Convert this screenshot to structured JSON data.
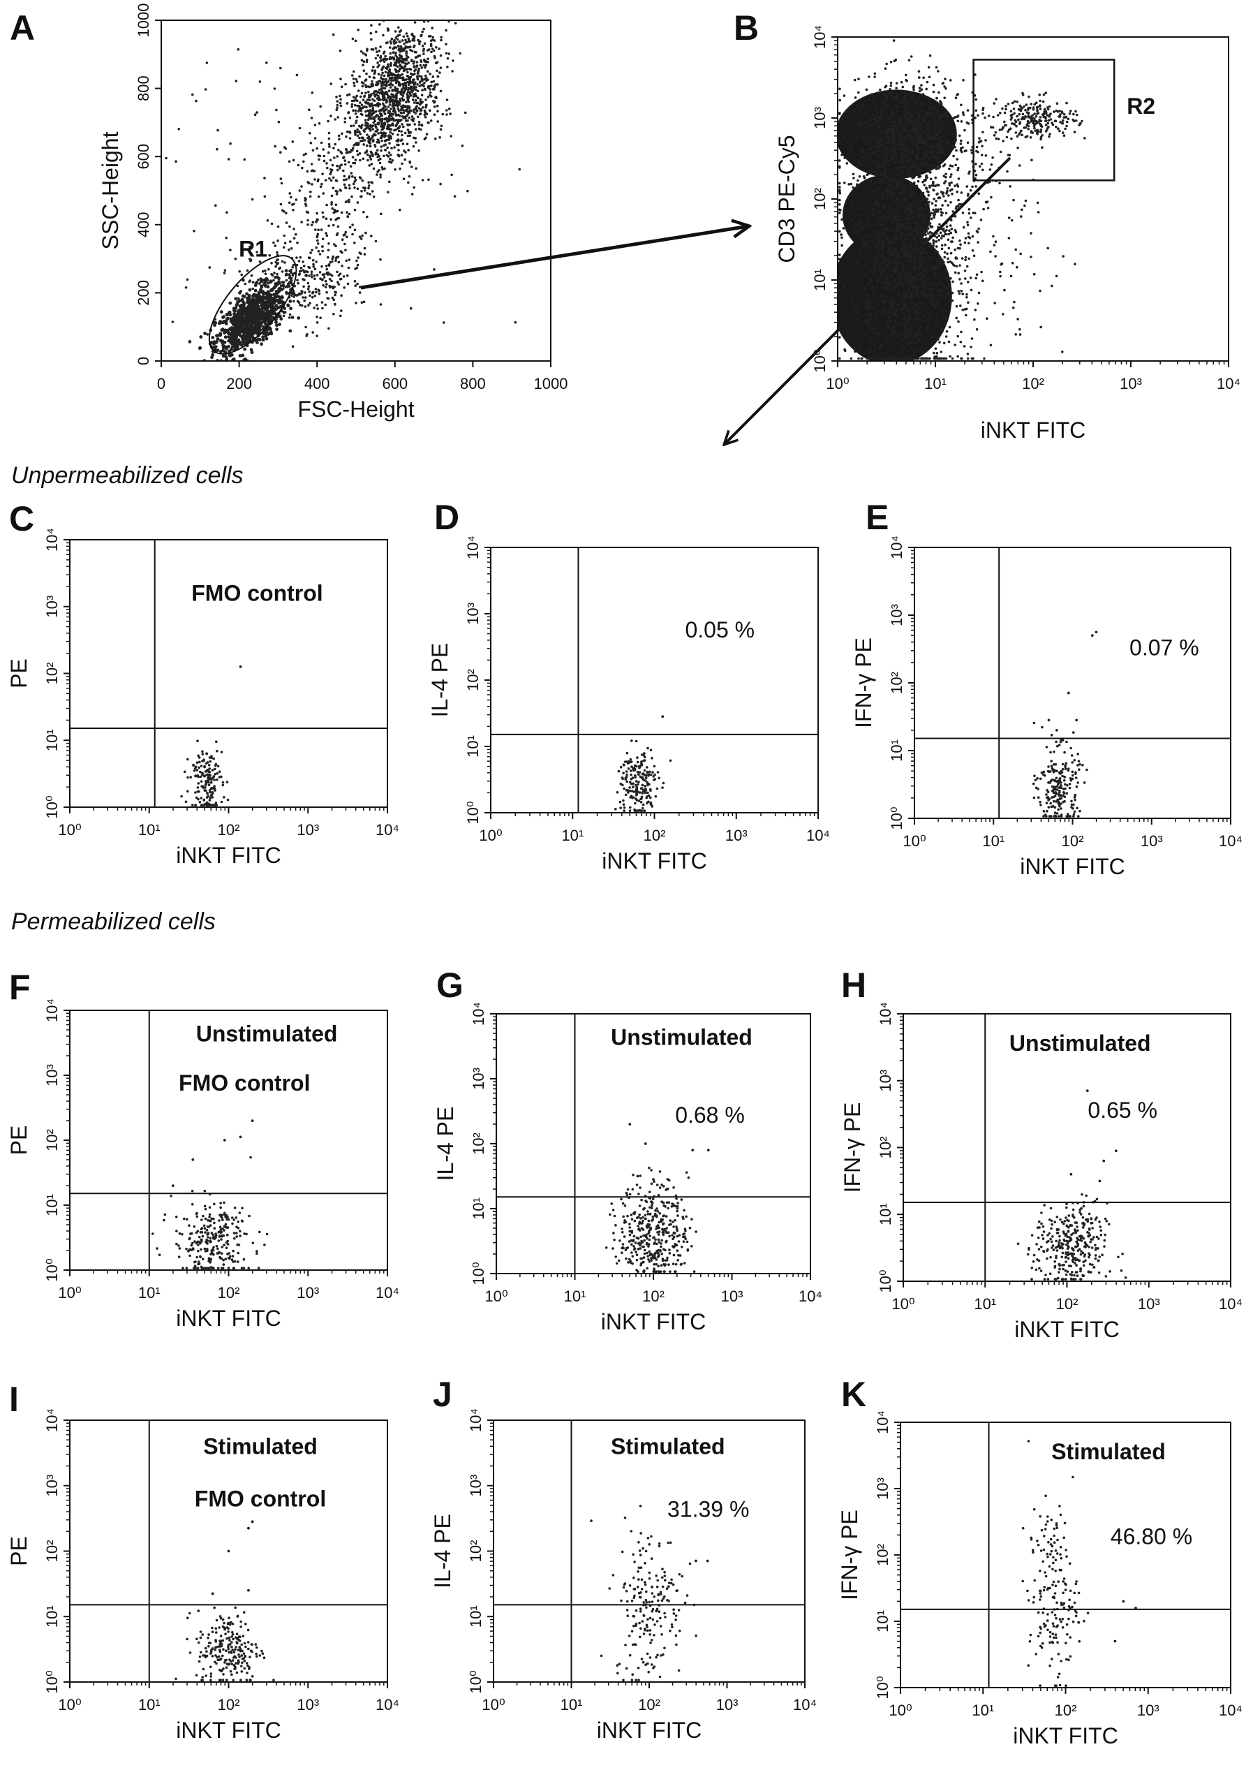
{
  "sections": {
    "unpermeabilized": "Unpermeabilized cells",
    "permeabilized": "Permeabilized cells"
  },
  "chart_data": [
    {
      "panel": "A",
      "type": "scatter",
      "x_scale": "linear",
      "y_scale": "linear",
      "xlim": [
        0,
        1000
      ],
      "ylim": [
        0,
        1000
      ],
      "xlabel": "FSC-Height",
      "ylabel": "SSC-Height",
      "xticks": [
        0,
        200,
        400,
        600,
        800,
        1000
      ],
      "xtick_labels": [
        "0",
        "200",
        "400",
        "600",
        "800",
        "1000"
      ],
      "yticks": [
        0,
        200,
        400,
        600,
        800,
        1000
      ],
      "ytick_labels": [
        "0",
        "200",
        "400",
        "600",
        "800",
        "1000"
      ],
      "gates": [
        {
          "type": "ellipse",
          "label": "R1",
          "cx": 235,
          "cy": 165,
          "rx": 155,
          "ry": 75,
          "angle_deg": 50
        }
      ],
      "clusters": [
        {
          "cx": 230,
          "cy": 120,
          "sx": 45,
          "sy": 40,
          "n": 900,
          "dense": true
        },
        {
          "cx": 590,
          "cy": 770,
          "sx": 55,
          "sy": 110,
          "n": 1300
        },
        {
          "cx": 420,
          "cy": 420,
          "sx": 60,
          "sy": 150,
          "n": 250
        },
        {
          "cx": 330,
          "cy": 230,
          "sx": 70,
          "sy": 50,
          "n": 250
        },
        {
          "cx": 400,
          "cy": 500,
          "sx": 220,
          "sy": 280,
          "n": 120
        }
      ],
      "annotations": []
    },
    {
      "panel": "B",
      "type": "scatter",
      "x_scale": "log",
      "y_scale": "log",
      "xlim": [
        0,
        4
      ],
      "ylim": [
        0,
        4
      ],
      "xlabel": "iNKT  FITC",
      "ylabel": "CD3  PE-Cy5",
      "xticks": [
        0,
        1,
        2,
        3,
        4
      ],
      "xtick_labels": [
        "10⁰",
        "10¹",
        "10²",
        "10³",
        "10⁴"
      ],
      "yticks": [
        0,
        1,
        2,
        3,
        4
      ],
      "ytick_labels": [
        "10⁰",
        "10¹",
        "10²",
        "10³",
        "10⁴"
      ],
      "gates": [
        {
          "type": "rect",
          "label": "R2",
          "x": [
            1.39,
            2.83
          ],
          "y": [
            2.23,
            3.72
          ]
        }
      ],
      "dense_regions": [
        {
          "cx": 0.6,
          "cy": 2.8,
          "rx": 0.62,
          "ry": 0.55
        },
        {
          "cx": 0.55,
          "cy": 0.8,
          "rx": 0.62,
          "ry": 0.85
        },
        {
          "cx": 0.5,
          "cy": 1.8,
          "rx": 0.45,
          "ry": 0.5
        }
      ],
      "clusters": [
        {
          "cx": 0.7,
          "cy": 2.8,
          "sx": 0.3,
          "sy": 0.35,
          "n": 700
        },
        {
          "cx": 0.7,
          "cy": 0.8,
          "sx": 0.3,
          "sy": 0.6,
          "n": 800
        },
        {
          "cx": 0.8,
          "cy": 1.8,
          "sx": 0.35,
          "sy": 0.45,
          "n": 600
        },
        {
          "cx": 2.05,
          "cy": 3.0,
          "sx": 0.2,
          "sy": 0.12,
          "n": 220
        },
        {
          "cx": 1.6,
          "cy": 2.7,
          "sx": 0.2,
          "sy": 0.25,
          "n": 60
        },
        {
          "cx": 1.6,
          "cy": 1.2,
          "sx": 0.4,
          "sy": 0.7,
          "n": 80
        }
      ],
      "annotations": []
    },
    {
      "panel": "C",
      "type": "scatter",
      "x_scale": "log",
      "y_scale": "log",
      "xlim": [
        0,
        4
      ],
      "ylim": [
        0,
        4
      ],
      "xlabel": "iNKT  FITC",
      "ylabel": "PE",
      "xtick_labels": [
        "10⁰",
        "10¹",
        "10²",
        "10³",
        "10⁴"
      ],
      "ytick_labels": [
        "10⁰",
        "10¹",
        "10²",
        "10³",
        "10⁴"
      ],
      "quadrant_gate": {
        "x": 1.07,
        "y": 1.18
      },
      "clusters": [
        {
          "cx": 1.72,
          "cy": 0.4,
          "sx": 0.1,
          "sy": 0.25,
          "n": 160
        }
      ],
      "outliers": [
        [
          2.15,
          2.1
        ]
      ],
      "annotations": [
        {
          "text": "FMO control",
          "bold": true
        }
      ]
    },
    {
      "panel": "D",
      "type": "scatter",
      "x_scale": "log",
      "y_scale": "log",
      "xlim": [
        0,
        4
      ],
      "ylim": [
        0,
        4
      ],
      "xlabel": "iNKT  FITC",
      "ylabel": "IL-4  PE",
      "xtick_labels": [
        "10⁰",
        "10¹",
        "10²",
        "10³",
        "10⁴"
      ],
      "ytick_labels": [
        "10⁰",
        "10¹",
        "10²",
        "10³",
        "10⁴"
      ],
      "quadrant_gate": {
        "x": 1.07,
        "y": 1.18
      },
      "clusters": [
        {
          "cx": 1.8,
          "cy": 0.45,
          "sx": 0.12,
          "sy": 0.28,
          "n": 190
        }
      ],
      "outliers": [
        [
          2.1,
          1.45
        ]
      ],
      "annotations": [
        {
          "text": "0.05 %",
          "bold": false
        }
      ]
    },
    {
      "panel": "E",
      "type": "scatter",
      "x_scale": "log",
      "y_scale": "log",
      "xlim": [
        0,
        4
      ],
      "ylim": [
        0,
        4
      ],
      "xlabel": "iNKT  FITC",
      "ylabel": "IFN-γ PE",
      "xtick_labels": [
        "10⁰",
        "10¹",
        "10²",
        "10³",
        "10⁴"
      ],
      "ytick_labels": [
        "10⁰",
        "10¹",
        "10²",
        "10³",
        "10⁴"
      ],
      "quadrant_gate": {
        "x": 1.07,
        "y": 1.18
      },
      "clusters": [
        {
          "cx": 1.82,
          "cy": 0.45,
          "sx": 0.13,
          "sy": 0.3,
          "n": 210
        }
      ],
      "outliers": [
        [
          2.3,
          2.75
        ],
        [
          2.25,
          2.7
        ],
        [
          1.95,
          1.85
        ],
        [
          1.7,
          1.45
        ],
        [
          2.05,
          1.45
        ],
        [
          1.8,
          1.3
        ]
      ],
      "annotations": [
        {
          "text": "0.07 %",
          "bold": false
        }
      ]
    },
    {
      "panel": "F",
      "type": "scatter",
      "x_scale": "log",
      "y_scale": "log",
      "xlim": [
        0,
        4
      ],
      "ylim": [
        0,
        4
      ],
      "xlabel": "iNKT  FITC",
      "ylabel": "PE",
      "xtick_labels": [
        "10⁰",
        "10¹",
        "10²",
        "10³",
        "10⁴"
      ],
      "ytick_labels": [
        "10⁰",
        "10¹",
        "10²",
        "10³",
        "10⁴"
      ],
      "quadrant_gate": {
        "x": 1.0,
        "y": 1.18
      },
      "clusters": [
        {
          "cx": 1.8,
          "cy": 0.45,
          "sx": 0.25,
          "sy": 0.3,
          "n": 260
        }
      ],
      "outliers": [
        [
          2.3,
          2.3
        ],
        [
          2.15,
          2.05
        ],
        [
          1.95,
          2.0
        ],
        [
          1.55,
          1.7
        ],
        [
          1.3,
          1.3
        ]
      ],
      "annotations": [
        {
          "text": "Unstimulated",
          "bold": true
        },
        {
          "text": "FMO control",
          "bold": true
        }
      ]
    },
    {
      "panel": "G",
      "type": "scatter",
      "x_scale": "log",
      "y_scale": "log",
      "xlim": [
        0,
        4
      ],
      "ylim": [
        0,
        4
      ],
      "xlabel": "iNKT  FITC",
      "ylabel": "IL-4  PE",
      "xtick_labels": [
        "10⁰",
        "10¹",
        "10²",
        "10³",
        "10⁴"
      ],
      "ytick_labels": [
        "10⁰",
        "10¹",
        "10²",
        "10³",
        "10⁴"
      ],
      "quadrant_gate": {
        "x": 1.0,
        "y": 1.18
      },
      "clusters": [
        {
          "cx": 2.0,
          "cy": 0.65,
          "sx": 0.22,
          "sy": 0.38,
          "n": 380
        }
      ],
      "outliers": [
        [
          1.7,
          2.3
        ],
        [
          1.9,
          2.0
        ],
        [
          2.5,
          1.9
        ],
        [
          2.7,
          1.9
        ],
        [
          1.8,
          1.5
        ],
        [
          2.0,
          1.45
        ]
      ],
      "annotations": [
        {
          "text": "Unstimulated",
          "bold": true
        },
        {
          "text": "0.68 %",
          "bold": false
        }
      ]
    },
    {
      "panel": "H",
      "type": "scatter",
      "x_scale": "log",
      "y_scale": "log",
      "xlim": [
        0,
        4
      ],
      "ylim": [
        0,
        4
      ],
      "xlabel": "iNKT  FITC",
      "ylabel": "IFN-γ PE",
      "xtick_labels": [
        "10⁰",
        "10¹",
        "10²",
        "10³",
        "10⁴"
      ],
      "ytick_labels": [
        "10⁰",
        "10¹",
        "10²",
        "10³",
        "10⁴"
      ],
      "quadrant_gate": {
        "x": 1.0,
        "y": 1.18
      },
      "clusters": [
        {
          "cx": 2.05,
          "cy": 0.5,
          "sx": 0.22,
          "sy": 0.33,
          "n": 320
        }
      ],
      "outliers": [
        [
          2.25,
          2.85
        ],
        [
          2.6,
          1.95
        ],
        [
          2.45,
          1.8
        ],
        [
          2.05,
          1.6
        ],
        [
          2.4,
          1.5
        ]
      ],
      "annotations": [
        {
          "text": "Unstimulated",
          "bold": true
        },
        {
          "text": "0.65 %",
          "bold": false
        }
      ]
    },
    {
      "panel": "I",
      "type": "scatter",
      "x_scale": "log",
      "y_scale": "log",
      "xlim": [
        0,
        4
      ],
      "ylim": [
        0,
        4
      ],
      "xlabel": "iNKT  FITC",
      "ylabel": "PE",
      "xtick_labels": [
        "10⁰",
        "10¹",
        "10²",
        "10³",
        "10⁴"
      ],
      "ytick_labels": [
        "10⁰",
        "10¹",
        "10²",
        "10³",
        "10⁴"
      ],
      "quadrant_gate": {
        "x": 1.0,
        "y": 1.18
      },
      "clusters": [
        {
          "cx": 2.0,
          "cy": 0.5,
          "sx": 0.2,
          "sy": 0.3,
          "n": 220
        }
      ],
      "outliers": [
        [
          2.3,
          2.45
        ],
        [
          2.25,
          2.35
        ],
        [
          2.0,
          2.0
        ],
        [
          2.25,
          1.4
        ],
        [
          1.8,
          1.35
        ]
      ],
      "annotations": [
        {
          "text": "Stimulated",
          "bold": true
        },
        {
          "text": "FMO control",
          "bold": true
        }
      ]
    },
    {
      "panel": "J",
      "type": "scatter",
      "x_scale": "log",
      "y_scale": "log",
      "xlim": [
        0,
        4
      ],
      "ylim": [
        0,
        4
      ],
      "xlabel": "iNKT  FITC",
      "ylabel": "IL-4  PE",
      "xtick_labels": [
        "10⁰",
        "10¹",
        "10²",
        "10³",
        "10⁴"
      ],
      "ytick_labels": [
        "10⁰",
        "10¹",
        "10²",
        "10³",
        "10⁴"
      ],
      "quadrant_gate": {
        "x": 1.0,
        "y": 1.18
      },
      "clusters": [
        {
          "cx": 2.0,
          "cy": 1.2,
          "sx": 0.22,
          "sy": 0.6,
          "n": 190
        }
      ],
      "outliers": [
        [
          2.6,
          1.85
        ],
        [
          2.75,
          1.85
        ]
      ],
      "annotations": [
        {
          "text": "Stimulated",
          "bold": true
        },
        {
          "text": "31.39 %",
          "bold": false
        }
      ]
    },
    {
      "panel": "K",
      "type": "scatter",
      "x_scale": "log",
      "y_scale": "log",
      "xlim": [
        0,
        4
      ],
      "ylim": [
        0,
        4
      ],
      "xlabel": "iNKT  FITC",
      "ylabel": "IFN-γ PE",
      "xtick_labels": [
        "10⁰",
        "10¹",
        "10²",
        "10³",
        "10⁴"
      ],
      "ytick_labels": [
        "10⁰",
        "10¹",
        "10²",
        "10³",
        "10⁴"
      ],
      "quadrant_gate": {
        "x": 1.07,
        "y": 1.18
      },
      "clusters": [
        {
          "cx": 1.85,
          "cy": 1.4,
          "sx": 0.15,
          "sy": 0.65,
          "n": 180
        }
      ],
      "outliers": [
        [
          2.7,
          1.3
        ],
        [
          2.85,
          1.2
        ],
        [
          2.6,
          0.7
        ]
      ],
      "annotations": [
        {
          "text": "Stimulated",
          "bold": true
        },
        {
          "text": "46.80 %",
          "bold": false
        }
      ]
    }
  ]
}
